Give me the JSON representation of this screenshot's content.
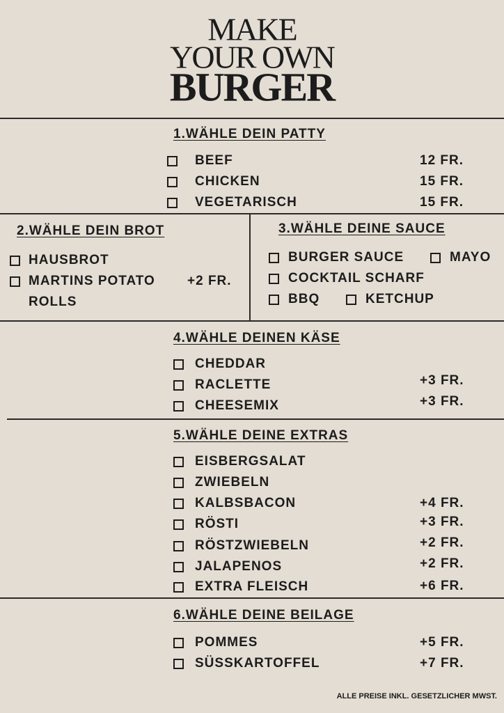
{
  "header": {
    "title_lines": [
      "MAKE",
      "YOUR OWN",
      "BURGER"
    ]
  },
  "sections": [
    {
      "heading": "1.WÄHLE DEIN PATTY",
      "items": [
        {
          "label": "BEEF",
          "price": "12 FR."
        },
        {
          "label": "CHICKEN",
          "price": "15 FR."
        },
        {
          "label": "VEGETARISCH",
          "price": "15 FR."
        }
      ]
    },
    {
      "heading": "2.WÄHLE DEIN BROT",
      "items": [
        {
          "label": "HAUSBROT"
        },
        {
          "label": "MARTINS POTATO ROLLS",
          "price": "+2 FR."
        }
      ]
    },
    {
      "heading": "3.WÄHLE DEINE SAUCE",
      "items": [
        {
          "label": "BURGER SAUCE"
        },
        {
          "label": "MAYO"
        },
        {
          "label": "COCKTAIL SCHARF"
        },
        {
          "label": "BBQ"
        },
        {
          "label": "KETCHUP"
        }
      ]
    },
    {
      "heading": "4.WÄHLE DEINEN KÄSE",
      "items": [
        {
          "label": "CHEDDAR"
        },
        {
          "label": "RACLETTE",
          "price": "+3 FR."
        },
        {
          "label": "CHEESEMIX",
          "price": "+3 FR."
        }
      ]
    },
    {
      "heading": "5.WÄHLE DEINE EXTRAS",
      "items": [
        {
          "label": "EISBERGSALAT"
        },
        {
          "label": "ZWIEBELN"
        },
        {
          "label": "KALBSBACON",
          "price": "+4 FR."
        },
        {
          "label": "RÖSTI",
          "price": "+3 FR."
        },
        {
          "label": "RÖSTZWIEBELN",
          "price": "+2 FR."
        },
        {
          "label": "JALAPENOS",
          "price": "+2 FR."
        },
        {
          "label": "EXTRA FLEISCH",
          "price": "+6 FR."
        }
      ]
    },
    {
      "heading": "6.WÄHLE DEINE BEILAGE",
      "items": [
        {
          "label": "POMMES",
          "price": "+5 FR."
        },
        {
          "label": "SÜSSKARTOFFEL",
          "price": "+7 FR."
        }
      ]
    }
  ],
  "footer": {
    "note": "ALLE PREISE INKL. GESETZLICHER MWST."
  }
}
